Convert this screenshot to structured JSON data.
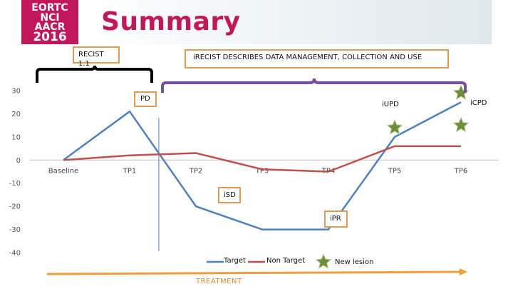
{
  "logo": {
    "lines": [
      "EORTC",
      "NCI",
      "AACR",
      "2016"
    ]
  },
  "slide": {
    "title": "Summary"
  },
  "annotations": {
    "recist": "RECIST 1.1",
    "irecist": "iRECIST DESCRIBES DATA MANAGEMENT, COLLECTION AND USE",
    "pd": "PD",
    "iupd": "iUPD",
    "icpd": "iCPD",
    "isd": "iSD",
    "ipr": "iPR",
    "treatment": "TREATMENT"
  },
  "colors": {
    "target": "#4f81bd",
    "non_target": "#c0504d",
    "star_fill": "#6b8e3a",
    "brace_black": "#000000",
    "brace_purple": "#7b4f9d",
    "box_border": "#e39a52",
    "arrow": "#f39c3d",
    "title": "#c2185b"
  },
  "chart_data": {
    "type": "line",
    "categories": [
      "Baseline",
      "TP1",
      "TP2",
      "TP3",
      "TP4",
      "TP5",
      "TP6"
    ],
    "ylim": [
      -40,
      30
    ],
    "yticks": [
      30,
      20,
      10,
      0,
      -10,
      -20,
      -30,
      -40
    ],
    "grid": false,
    "legend_position": "bottom",
    "series": [
      {
        "name": "Target",
        "values": [
          0,
          21,
          -20,
          -30,
          -30,
          10,
          25
        ]
      },
      {
        "name": "Non Target",
        "values": [
          0,
          2,
          3,
          -4,
          -5,
          6,
          6
        ]
      }
    ],
    "markers": {
      "name": "New lesion",
      "points": [
        {
          "x": "TP5",
          "y": 14
        },
        {
          "x": "TP6",
          "y": 29
        },
        {
          "x": "TP6",
          "y": 15
        }
      ]
    },
    "vertical_line": {
      "between": [
        "TP1",
        "TP2"
      ],
      "position": 0.44
    }
  }
}
